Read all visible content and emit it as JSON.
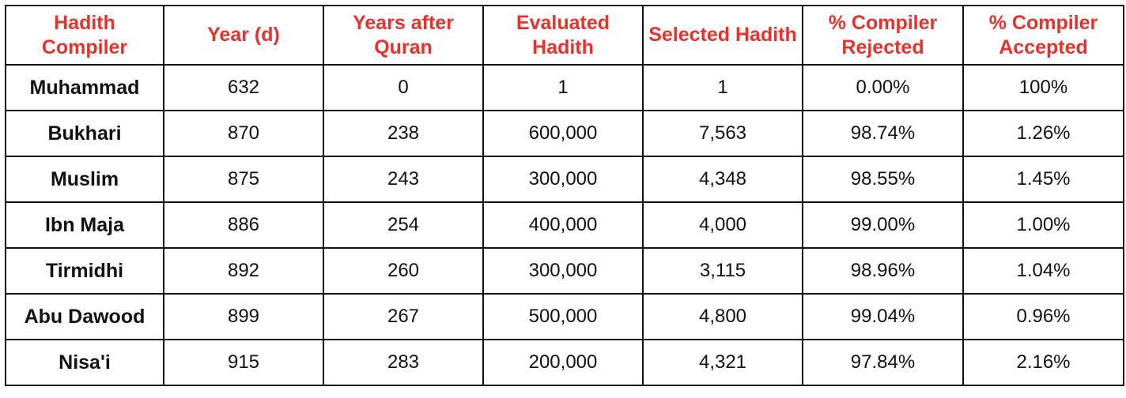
{
  "table": {
    "headers": [
      "Hadith Compiler",
      "Year (d)",
      "Years after Quran",
      "Evaluated Hadith",
      "Selected Hadith",
      "% Compiler Rejected",
      "% Compiler Accepted"
    ],
    "rows": [
      [
        "Muhammad",
        "632",
        "0",
        "1",
        "1",
        "0.00%",
        "100%"
      ],
      [
        "Bukhari",
        "870",
        "238",
        "600,000",
        "7,563",
        "98.74%",
        "1.26%"
      ],
      [
        "Muslim",
        "875",
        "243",
        "300,000",
        "4,348",
        "98.55%",
        "1.45%"
      ],
      [
        "Ibn Maja",
        "886",
        "254",
        "400,000",
        "4,000",
        "99.00%",
        "1.00%"
      ],
      [
        "Tirmidhi",
        "892",
        "260",
        "300,000",
        "3,115",
        "98.96%",
        "1.04%"
      ],
      [
        "Abu Dawood",
        "899",
        "267",
        "500,000",
        "4,800",
        "99.04%",
        "0.96%"
      ],
      [
        "Nisa'i",
        "915",
        "283",
        "200,000",
        "4,321",
        "97.84%",
        "2.16%"
      ]
    ]
  },
  "colors": {
    "header_text": "#e8312b",
    "body_text": "#111111",
    "border": "#111111",
    "background": "#ffffff"
  }
}
